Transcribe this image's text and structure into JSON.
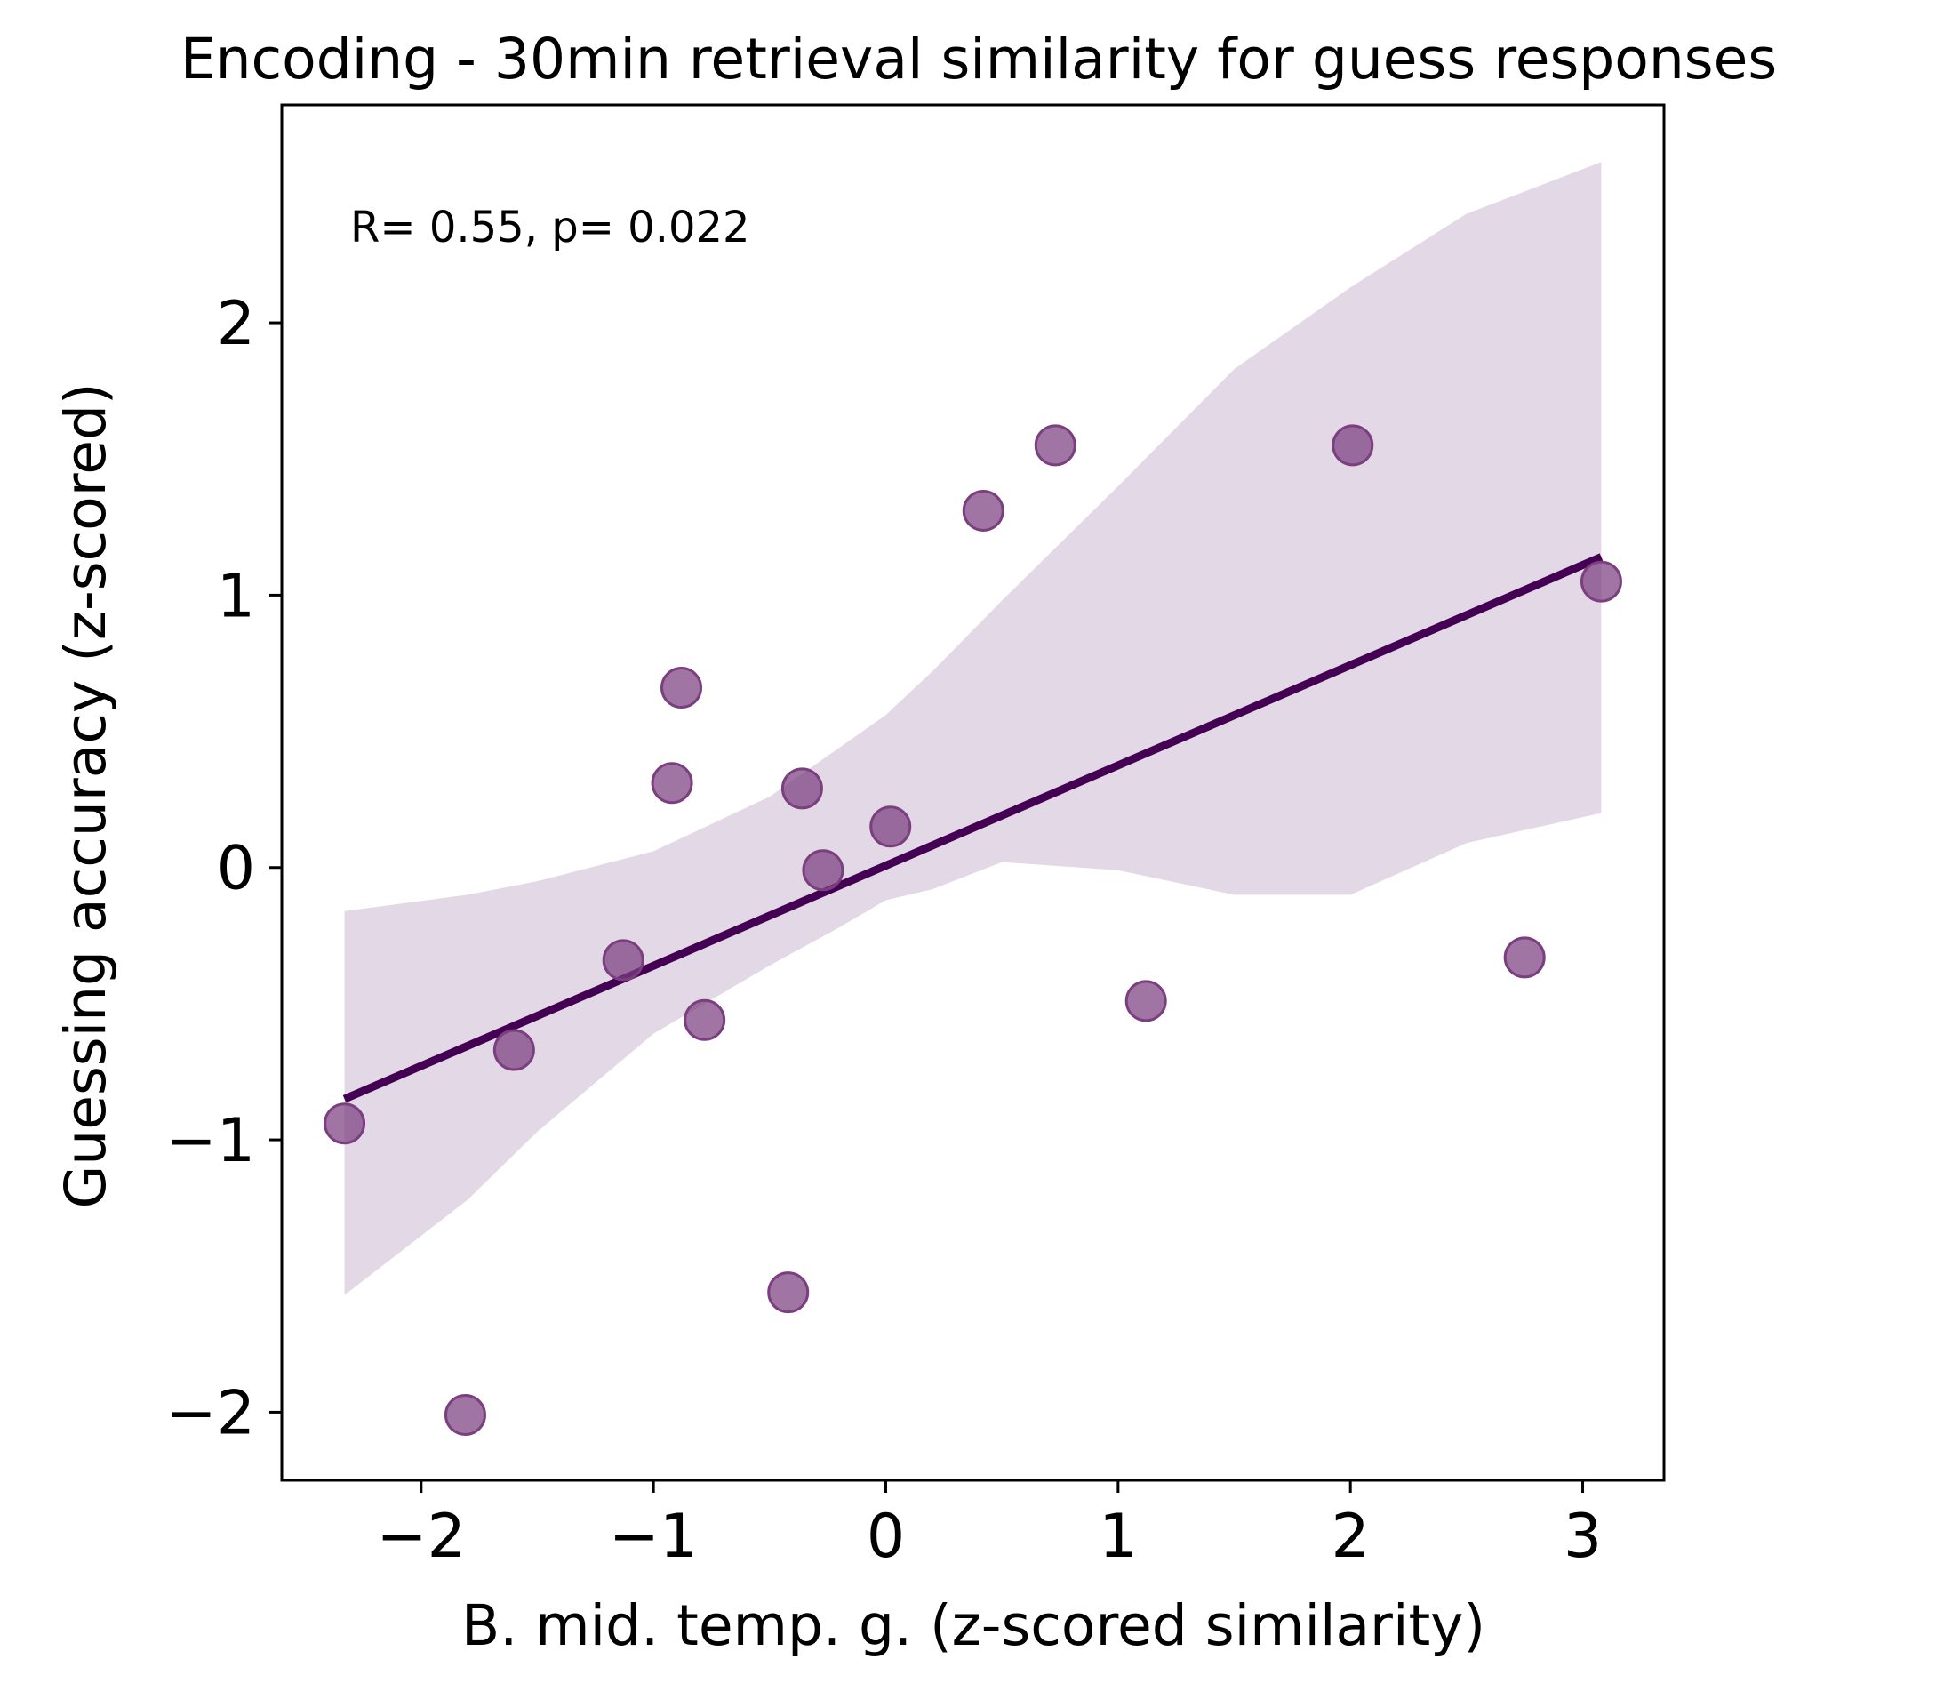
{
  "chart_data": {
    "type": "scatter",
    "title": "Encoding - 30min retrieval similarity for guess responses",
    "xlabel": "B. mid. temp. g. (z-scored similarity)",
    "ylabel": "Guessing accuracy (z-scored)",
    "xlim": [
      -2.6,
      3.35
    ],
    "ylim": [
      -2.25,
      2.8
    ],
    "xticks": [
      -2,
      -1,
      0,
      1,
      2,
      3
    ],
    "yticks": [
      -2,
      -1,
      0,
      1,
      2
    ],
    "xtick_labels": [
      "−2",
      "−1",
      "0",
      "1",
      "2",
      "3"
    ],
    "ytick_labels": [
      "−2",
      "−1",
      "0",
      "1",
      "2"
    ],
    "annotation": "R= 0.55, p= 0.022",
    "grid": false,
    "colors": {
      "points": "#7b3f7f",
      "regression_line": "#440154",
      "confidence_band": "#e3d8e5"
    },
    "points": [
      {
        "x": -2.33,
        "y": -0.94
      },
      {
        "x": -1.81,
        "y": -2.01
      },
      {
        "x": -1.6,
        "y": -0.67
      },
      {
        "x": -1.13,
        "y": -0.34
      },
      {
        "x": -0.92,
        "y": 0.31
      },
      {
        "x": -0.88,
        "y": 0.66
      },
      {
        "x": -0.78,
        "y": -0.56
      },
      {
        "x": -0.42,
        "y": -1.56
      },
      {
        "x": -0.36,
        "y": 0.29
      },
      {
        "x": -0.27,
        "y": -0.01
      },
      {
        "x": 0.02,
        "y": 0.15
      },
      {
        "x": 0.42,
        "y": 1.31
      },
      {
        "x": 0.73,
        "y": 1.55
      },
      {
        "x": 1.12,
        "y": -0.49
      },
      {
        "x": 2.01,
        "y": 1.55
      },
      {
        "x": 2.75,
        "y": -0.33
      },
      {
        "x": 3.08,
        "y": 1.05
      }
    ],
    "regression": {
      "x": [
        -2.33,
        3.08
      ],
      "y": [
        -0.85,
        1.14
      ]
    },
    "confidence_band": {
      "x": [
        -2.33,
        -1.8,
        -1.5,
        -1.0,
        -0.5,
        -0.2,
        0.0,
        0.2,
        0.5,
        1.0,
        1.5,
        2.0,
        2.5,
        3.08
      ],
      "upper": [
        -0.16,
        -0.1,
        -0.05,
        0.06,
        0.26,
        0.44,
        0.56,
        0.72,
        0.98,
        1.4,
        1.83,
        2.13,
        2.4,
        2.59
      ],
      "lower": [
        -1.57,
        -1.22,
        -0.97,
        -0.61,
        -0.36,
        -0.22,
        -0.12,
        -0.08,
        0.02,
        -0.01,
        -0.1,
        -0.1,
        0.09,
        0.2
      ]
    }
  }
}
